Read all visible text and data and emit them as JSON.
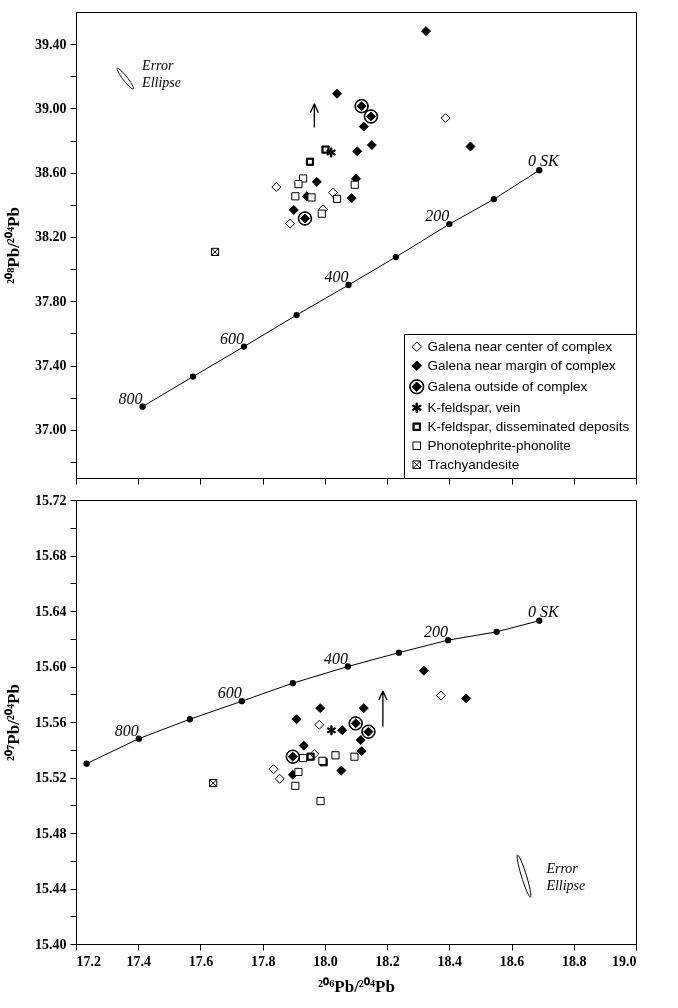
{
  "chart_data": [
    {
      "type": "scatter",
      "ylabel": "²⁰⁸Pb/²⁰⁴Pb",
      "xlim": [
        17.2,
        19.0
      ],
      "ylim": [
        36.7,
        39.6
      ],
      "tick_labels": "y",
      "legend": "bottom right",
      "xticks": [
        17.2,
        17.4,
        17.6,
        17.8,
        18,
        18.2,
        18.4,
        18.6,
        18.8,
        19
      ],
      "yticks": [
        {
          "value": 36.8,
          "label": null
        },
        {
          "value": 37,
          "label": "37.00"
        },
        {
          "value": 37.2,
          "label": null
        },
        {
          "value": 37.4,
          "label": "37.40"
        },
        {
          "value": 37.6,
          "label": null
        },
        {
          "value": 37.8,
          "label": "37.80"
        },
        {
          "value": 38,
          "label": null
        },
        {
          "value": 38.2,
          "label": "38.20"
        },
        {
          "value": 38.4,
          "label": null
        },
        {
          "value": 38.6,
          "label": "38.60"
        },
        {
          "value": 38.8,
          "label": null
        },
        {
          "value": 39,
          "label": "39.00"
        },
        {
          "value": 39.2,
          "label": null
        },
        {
          "value": 39.4,
          "label": "39.40"
        }
      ],
      "series": [
        {
          "type": "line",
          "color": "#000000",
          "marker": "circle",
          "x": [
            17.414,
            17.576,
            17.74,
            17.909,
            18.076,
            18.228,
            18.4,
            18.543,
            18.689
          ],
          "values": [
            37.144,
            37.331,
            37.518,
            37.714,
            37.901,
            38.075,
            38.28,
            38.435,
            38.615
          ]
        },
        {
          "name": "Galena near center of complex",
          "color": "#000000",
          "marker": "diamond",
          "x": [
            17.844,
            17.888,
            17.994,
            18.026,
            18.388
          ],
          "values": [
            38.511,
            38.283,
            38.372,
            38.476,
            38.94
          ]
        },
        {
          "name": "Galena near margin of complex",
          "color": "#000000",
          "marker": "diamond",
          "x": [
            18.325,
            18.039,
            18.125,
            18.151,
            18.104,
            18.468,
            17.974,
            17.942,
            17.9,
            18.1,
            18.086
          ],
          "values": [
            39.481,
            39.091,
            38.887,
            38.772,
            38.733,
            38.763,
            38.543,
            38.453,
            38.368,
            38.562,
            38.442
          ]
        },
        {
          "name": "Galena outside of complex",
          "color": "#000000",
          "marker": "diamond",
          "x": [
            18.118,
            18.148,
            17.936
          ],
          "values": [
            39.014,
            38.95,
            38.315
          ]
        },
        {
          "name": "K-feldspar, vein",
          "color": "#000000",
          "marker": "cross",
          "x": [
            18.02
          ],
          "values": [
            38.726
          ]
        },
        {
          "name": "K-feldspar, disseminated deposits",
          "color": "#000000",
          "marker": "square",
          "x": [
            18.002,
            17.952
          ],
          "values": [
            38.744,
            38.668
          ]
        },
        {
          "name": "Phonotephrite-phonolite",
          "color": "#000000",
          "marker": "square",
          "x": [
            17.93,
            17.915,
            17.905,
            17.957,
            18.039,
            17.99,
            18.096
          ],
          "values": [
            38.564,
            38.529,
            38.453,
            38.446,
            38.437,
            38.345,
            38.525
          ]
        },
        {
          "name": "Trachyandesite",
          "color": "#000000",
          "marker": "cross",
          "x": [
            17.647
          ],
          "values": [
            38.107
          ]
        }
      ],
      "annotations": [
        {
          "text": "0 SK",
          "x": 18.689,
          "y": 38.615
        },
        {
          "text": "200",
          "x": 18.4,
          "y": 38.28
        },
        {
          "text": "400",
          "x": 18.076,
          "y": 37.901
        },
        {
          "text": "600",
          "x": 17.74,
          "y": 37.518
        },
        {
          "text": "800",
          "x": 17.414,
          "y": 37.144
        },
        "Error Ellipse"
      ]
    },
    {
      "type": "scatter",
      "xlabel": "²⁰⁶Pb/²⁰⁴Pb",
      "ylabel": "²⁰⁷Pb/²⁰⁴Pb",
      "xlim": [
        17.2,
        19.0
      ],
      "ylim": [
        15.4,
        15.72
      ],
      "xticks": [
        17.2,
        17.4,
        17.6,
        17.8,
        {
          "value": 18,
          "label": "18.0"
        },
        18.2,
        18.4,
        18.6,
        18.8,
        {
          "value": 19,
          "label": "19.0"
        }
      ],
      "yticks": [
        {
          "value": 15.4,
          "label": "15.40"
        },
        {
          "value": 15.42,
          "label": null
        },
        {
          "value": 15.44,
          "label": "15.44"
        },
        {
          "value": 15.46,
          "label": null
        },
        {
          "value": 15.48,
          "label": "15.48"
        },
        {
          "value": 15.5,
          "label": null
        },
        {
          "value": 15.52,
          "label": "15.52"
        },
        {
          "value": 15.54,
          "label": null
        },
        {
          "value": 15.56,
          "label": "15.56"
        },
        {
          "value": 15.58,
          "label": null
        },
        {
          "value": 15.6,
          "label": "15.60"
        },
        {
          "value": 15.62,
          "label": null
        },
        {
          "value": 15.64,
          "label": "15.64"
        },
        {
          "value": 15.66,
          "label": null
        },
        {
          "value": 15.68,
          "label": "15.68"
        },
        {
          "value": 15.7,
          "label": null
        },
        {
          "value": 15.72,
          "label": "15.72"
        }
      ],
      "series": [
        {
          "type": "line",
          "color": "#000000",
          "marker": "circle",
          "x": [
            17.234,
            17.402,
            17.566,
            17.733,
            17.897,
            18.074,
            18.238,
            18.396,
            18.552,
            18.689
          ],
          "values": [
            15.53,
            15.548,
            15.562,
            15.575,
            15.588,
            15.6,
            15.61,
            15.619,
            15.625,
            15.633
          ]
        },
        {
          "color": "#000000",
          "marker": "diamond",
          "x": [
            18.373,
            17.982,
            17.966,
            17.835,
            17.855
          ],
          "values": [
            15.579,
            15.558,
            15.537,
            15.526,
            15.519
          ]
        },
        {
          "color": "#000000",
          "marker": "diamond",
          "x": [
            18.318,
            18.454,
            17.985,
            18.125,
            17.909,
            18.056,
            17.932,
            18.115,
            18.118,
            17.897,
            18.053
          ],
          "values": [
            15.597,
            15.577,
            15.57,
            15.57,
            15.562,
            15.554,
            15.543,
            15.547,
            15.539,
            15.522,
            15.525
          ]
        },
        {
          "color": "#000000",
          "marker": "diamond",
          "x": [
            18.099,
            18.14,
            17.897
          ],
          "values": [
            15.559,
            15.553,
            15.535
          ]
        },
        {
          "color": "#000000",
          "marker": "cross",
          "x": [
            18.021
          ],
          "values": [
            15.554
          ]
        },
        {
          "color": "#000000",
          "marker": "square",
          "x": [
            17.954,
            17.996
          ],
          "values": [
            15.535,
            15.531
          ]
        },
        {
          "color": "#000000",
          "marker": "square",
          "x": [
            17.915,
            17.905,
            17.986,
            18.034,
            18.095,
            17.93,
            17.992
          ],
          "values": [
            15.524,
            15.514,
            15.503,
            15.536,
            15.535,
            15.534,
            15.532
          ]
        },
        {
          "color": "#000000",
          "marker": "cross",
          "x": [
            17.641
          ],
          "values": [
            15.516
          ]
        }
      ],
      "annotations": [
        {
          "text": "0 SK",
          "x": 18.689,
          "y": 15.633
        },
        {
          "text": "200",
          "x": 18.396,
          "y": 15.619
        },
        {
          "text": "400",
          "x": 18.074,
          "y": 15.6
        },
        {
          "text": "600",
          "x": 17.733,
          "y": 15.575
        },
        {
          "text": "800",
          "x": 17.402,
          "y": 15.548
        },
        "Error Ellipse"
      ]
    }
  ]
}
